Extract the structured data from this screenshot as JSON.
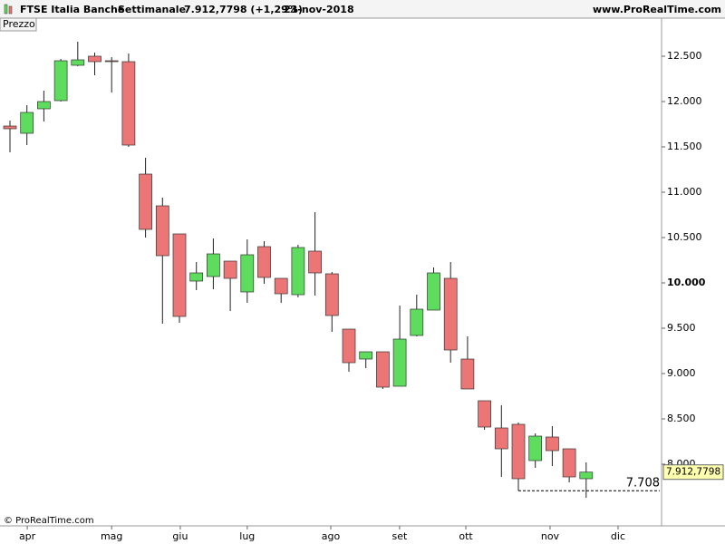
{
  "header": {
    "name": "FTSE Italia Banche",
    "period": "Settimanale",
    "quote": "7.912,7798 (+1,29%)",
    "date": "23-nov-2018",
    "site": "www.ProRealTime.com"
  },
  "panel_label": "Prezzo",
  "copyright": "© ProRealTime.com",
  "chart_data": {
    "type": "candlestick",
    "categories": [
      null,
      null,
      null,
      null,
      null,
      null,
      null,
      null,
      null,
      null,
      null,
      null,
      null,
      null,
      null,
      null,
      null,
      null,
      null,
      null,
      null,
      null,
      null,
      null,
      null,
      null,
      null,
      null,
      null,
      null,
      null,
      null,
      null,
      null,
      null
    ],
    "open": [
      11730,
      11650,
      11920,
      12010,
      12400,
      12500,
      12450,
      12440,
      11200,
      10850,
      10540,
      10020,
      10070,
      10240,
      9900,
      10400,
      10050,
      9870,
      10350,
      10100,
      9490,
      9160,
      9240,
      8860,
      9420,
      9700,
      10050,
      9160,
      8700,
      8400,
      8440,
      8040,
      8300,
      8170,
      7840
    ],
    "high": [
      11790,
      11960,
      12120,
      12470,
      12660,
      12540,
      12490,
      12530,
      11380,
      10940,
      10540,
      10230,
      10490,
      10240,
      10480,
      10460,
      10050,
      10420,
      10780,
      10120,
      9490,
      9240,
      9240,
      9750,
      9870,
      10170,
      10230,
      9410,
      8700,
      8650,
      8460,
      8340,
      8420,
      8170,
      8020
    ],
    "low": [
      11440,
      11520,
      11780,
      12000,
      12390,
      12290,
      12100,
      11500,
      10500,
      9550,
      9560,
      9920,
      9930,
      9690,
      9780,
      9990,
      9780,
      9840,
      9860,
      9460,
      9020,
      9060,
      8830,
      8860,
      9410,
      9700,
      9120,
      8830,
      8380,
      7860,
      7708,
      7960,
      7980,
      7800,
      7630
    ],
    "close": [
      11700,
      11880,
      12000,
      12450,
      12460,
      12440,
      12440,
      11520,
      10590,
      10300,
      9630,
      10110,
      10320,
      10050,
      10310,
      10060,
      9880,
      10390,
      10110,
      9640,
      9120,
      9240,
      8850,
      9380,
      9710,
      10110,
      9260,
      8830,
      8410,
      8170,
      7840,
      8310,
      8150,
      7860,
      7912.7798
    ],
    "up_color": "#5ddc5d",
    "down_color": "#ec7676",
    "ylim": [
      7320,
      12920
    ],
    "yticks": [
      {
        "value": 8000,
        "label": "8.000"
      },
      {
        "value": 8500,
        "label": "8.500"
      },
      {
        "value": 9000,
        "label": "9.000"
      },
      {
        "value": 9500,
        "label": "9.500"
      },
      {
        "value": 10000,
        "label": "10.000"
      },
      {
        "value": 10500,
        "label": "10.500"
      },
      {
        "value": 11000,
        "label": "11.000"
      },
      {
        "value": 11500,
        "label": "11.500"
      },
      {
        "value": 12000,
        "label": "12.000"
      },
      {
        "value": 12500,
        "label": "12.500"
      }
    ],
    "xticks": [
      {
        "value": 1.02,
        "label": "apr"
      },
      {
        "value": 6,
        "label": "mag"
      },
      {
        "value": 10.05,
        "label": "giu"
      },
      {
        "value": 14,
        "label": "lug"
      },
      {
        "value": 18.93,
        "label": "ago"
      },
      {
        "value": 22.99,
        "label": "set"
      },
      {
        "value": 26.9,
        "label": "ott"
      },
      {
        "value": 31.87,
        "label": "nov"
      },
      {
        "value": 35.88,
        "label": "dic"
      }
    ],
    "low_line": {
      "value": 7708,
      "label": "7.708"
    },
    "last_price": {
      "value": 7912.7798,
      "label": "7.912,7798"
    }
  }
}
